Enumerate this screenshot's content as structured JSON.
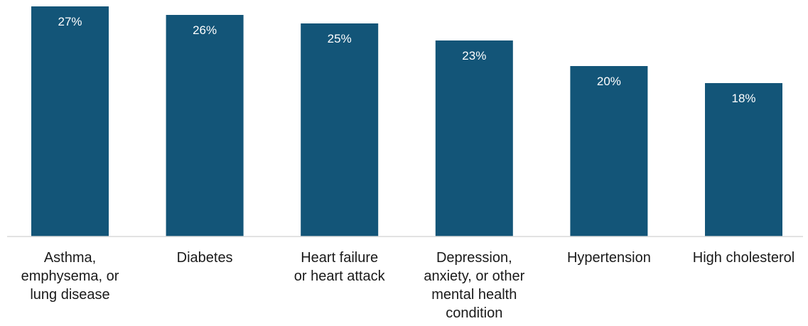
{
  "chart_data": {
    "type": "bar",
    "title": "",
    "xlabel": "",
    "ylabel": "",
    "categories": [
      "Asthma, emphysema, or lung disease",
      "Diabetes",
      "Heart failure or heart attack",
      "Depression, anxiety, or other mental health condition",
      "Hypertension",
      "High cholesterol"
    ],
    "category_lines": [
      [
        "Asthma,",
        "emphysema, or",
        "lung disease"
      ],
      [
        "Diabetes"
      ],
      [
        "Heart failure",
        "or heart attack"
      ],
      [
        "Depression,",
        "anxiety, or other",
        "mental health",
        "condition"
      ],
      [
        "Hypertension"
      ],
      [
        "High cholesterol"
      ]
    ],
    "values": [
      27,
      26,
      25,
      23,
      20,
      18
    ],
    "value_labels": [
      "27%",
      "26%",
      "25%",
      "23%",
      "20%",
      "18%"
    ],
    "ylim": [
      0,
      27
    ],
    "grid": false,
    "legend": "none",
    "bar_color": "#135578",
    "axis_color": "#d9d9d9"
  }
}
